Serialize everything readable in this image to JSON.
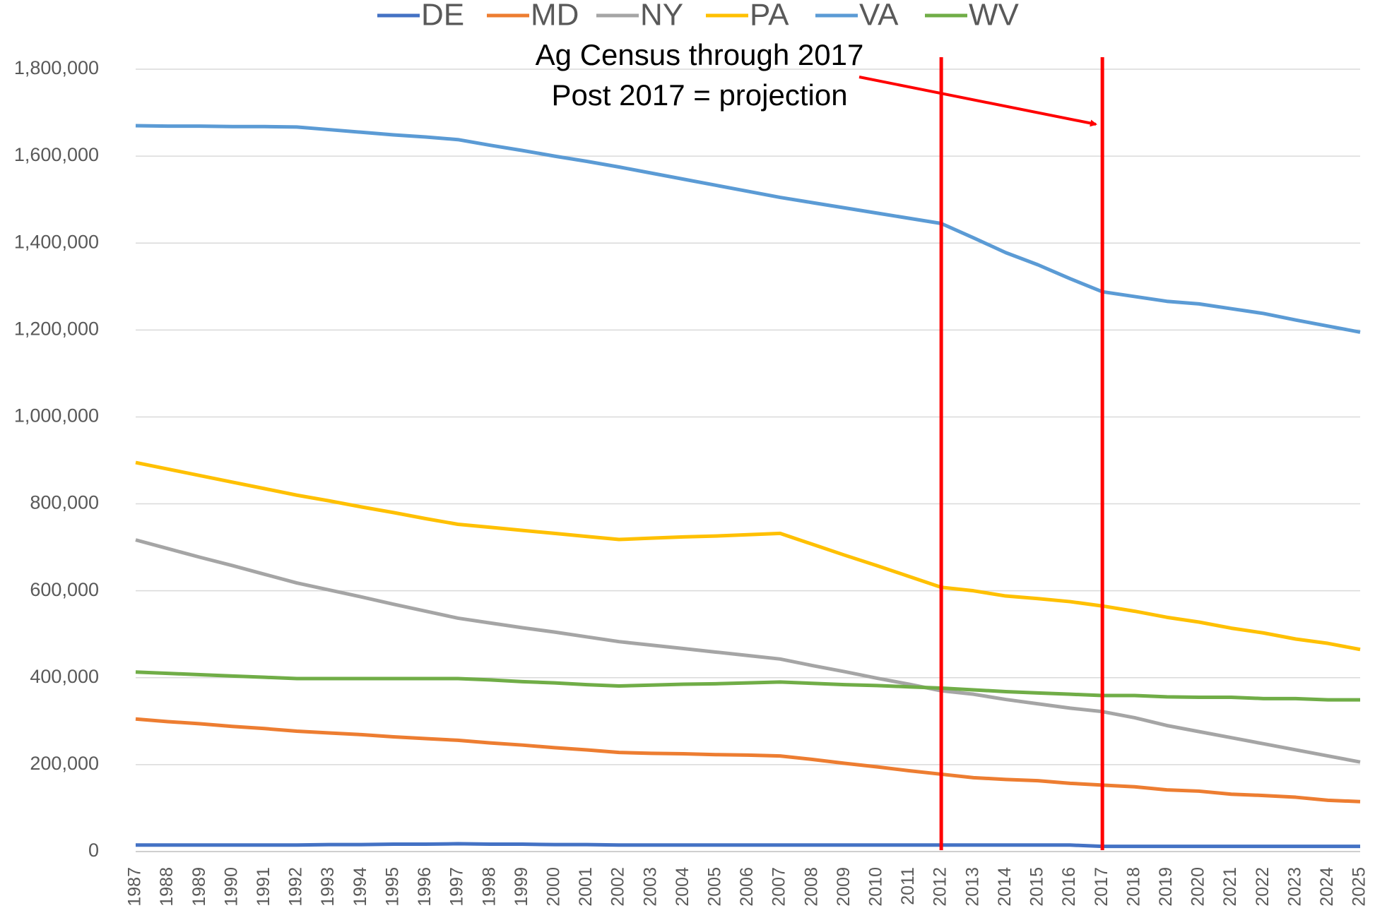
{
  "chart_data": {
    "type": "line",
    "categories": [
      "1987",
      "1988",
      "1989",
      "1990",
      "1991",
      "1992",
      "1993",
      "1994",
      "1995",
      "1996",
      "1997",
      "1998",
      "1999",
      "2000",
      "2001",
      "2002",
      "2003",
      "2004",
      "2005",
      "2006",
      "2007",
      "2008",
      "2009",
      "2010",
      "2011",
      "2012",
      "2013",
      "2014",
      "2015",
      "2016",
      "2017",
      "2018",
      "2019",
      "2020",
      "2021",
      "2022",
      "2023",
      "2024",
      "2025"
    ],
    "series": [
      {
        "name": "DE",
        "color": "#4472c4",
        "values": [
          15000,
          15000,
          15000,
          15000,
          15000,
          15000,
          16000,
          16000,
          17000,
          17000,
          18000,
          17000,
          17000,
          16000,
          16000,
          15000,
          15000,
          15000,
          15000,
          15000,
          15000,
          15000,
          15000,
          15000,
          15000,
          15000,
          15000,
          15000,
          15000,
          15000,
          12000,
          12000,
          12000,
          12000,
          12000,
          12000,
          12000,
          12000,
          12000
        ]
      },
      {
        "name": "MD",
        "color": "#ed7d31",
        "values": [
          305000,
          299000,
          294000,
          288000,
          283000,
          277000,
          273000,
          269000,
          264000,
          260000,
          256000,
          250000,
          245000,
          239000,
          234000,
          228000,
          226000,
          225000,
          223000,
          222000,
          220000,
          212000,
          203000,
          195000,
          186000,
          178000,
          170000,
          166000,
          163000,
          157000,
          153000,
          149000,
          142000,
          139000,
          132000,
          129000,
          125000,
          118000,
          115000
        ]
      },
      {
        "name": "NY",
        "color": "#a5a5a5",
        "values": [
          717000,
          697000,
          677000,
          658000,
          638000,
          618000,
          602000,
          586000,
          569000,
          553000,
          537000,
          526000,
          515000,
          505000,
          494000,
          483000,
          475000,
          467000,
          459000,
          451000,
          443000,
          428000,
          414000,
          399000,
          385000,
          370000,
          362000,
          350000,
          340000,
          330000,
          322000,
          308000,
          290000,
          276000,
          262000,
          248000,
          234000,
          220000,
          206000
        ]
      },
      {
        "name": "PA",
        "color": "#ffc000",
        "values": [
          895000,
          880000,
          865000,
          850000,
          835000,
          820000,
          807000,
          793000,
          780000,
          766000,
          753000,
          746000,
          739000,
          732000,
          725000,
          718000,
          721000,
          724000,
          726000,
          729000,
          732000,
          707000,
          682000,
          658000,
          633000,
          608000,
          600000,
          588000,
          582000,
          575000,
          565000,
          553000,
          539000,
          528000,
          514000,
          503000,
          489000,
          479000,
          465000
        ]
      },
      {
        "name": "VA",
        "color": "#5b9bd5",
        "values": [
          1670000,
          1669000,
          1669000,
          1668000,
          1668000,
          1667000,
          1661000,
          1655000,
          1649000,
          1644000,
          1638000,
          1625000,
          1613000,
          1600000,
          1588000,
          1575000,
          1561000,
          1547000,
          1533000,
          1519000,
          1505000,
          1493000,
          1481000,
          1469000,
          1457000,
          1445000,
          1412000,
          1378000,
          1350000,
          1318000,
          1288000,
          1277000,
          1266000,
          1260000,
          1249000,
          1238000,
          1223000,
          1209000,
          1195000
        ]
      },
      {
        "name": "WV",
        "color": "#70ad47",
        "values": [
          413000,
          410000,
          407000,
          404000,
          401000,
          398000,
          398000,
          398000,
          398000,
          398000,
          398000,
          395000,
          391000,
          388000,
          384000,
          381000,
          383000,
          385000,
          386000,
          388000,
          390000,
          387000,
          384000,
          382000,
          379000,
          376000,
          372000,
          368000,
          365000,
          362000,
          359000,
          359000,
          356000,
          355000,
          355000,
          352000,
          352000,
          349000,
          349000
        ]
      }
    ],
    "ylim": [
      0,
      1800000
    ],
    "yticks": [
      0,
      {
        "value": 200000,
        "label": "200,000"
      },
      {
        "value": 400000,
        "label": "400,000"
      },
      {
        "value": 600000,
        "label": "600,000"
      },
      {
        "value": 800000,
        "label": "800,000"
      },
      {
        "value": 1000000,
        "label": "1,000,000"
      },
      {
        "value": 1200000,
        "label": "1,200,000"
      },
      {
        "value": 1400000,
        "label": "1,400,000"
      },
      {
        "value": 1600000,
        "label": "1,600,000"
      },
      {
        "value": 1800000,
        "label": "1,800,000"
      }
    ],
    "grid": true,
    "legend": "top",
    "annotation": [
      "Ag Census through 2017",
      "Post 2017 = projection"
    ],
    "reference_lines": [
      {
        "x": "2012",
        "color": "#ff0000"
      },
      {
        "x": "2017",
        "color": "#ff0000"
      }
    ]
  }
}
